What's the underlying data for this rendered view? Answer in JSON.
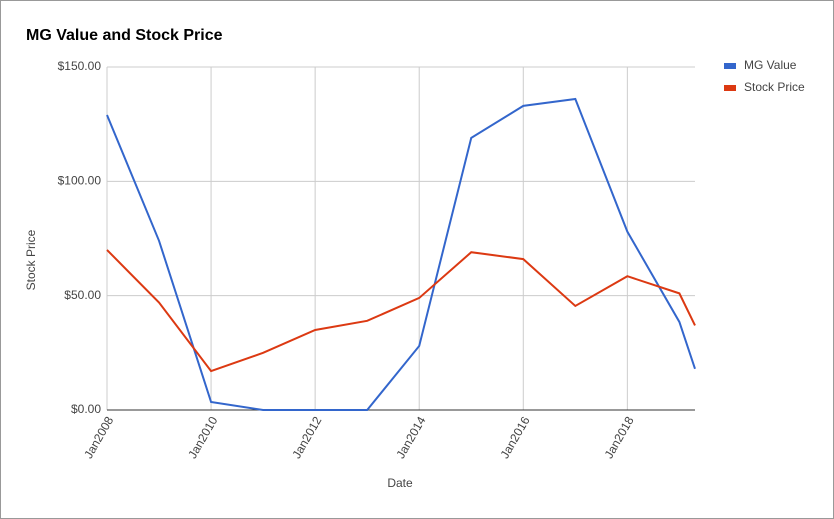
{
  "chart_data": {
    "type": "line",
    "title": "MG Value and Stock Price",
    "x_label": "Date",
    "y_label": "Stock Price",
    "x": [
      2008,
      2009,
      2010,
      2011,
      2012,
      2013,
      2014,
      2015,
      2016,
      2017,
      2018,
      2019,
      2019.3
    ],
    "series": [
      {
        "name": "MG Value",
        "color": "#3366cc",
        "values": [
          129,
          74,
          3.5,
          0,
          0,
          0,
          28,
          119,
          133,
          136,
          78,
          38.5,
          18
        ]
      },
      {
        "name": "Stock Price",
        "color": "#dc3912",
        "values": [
          70,
          47,
          17,
          25,
          35,
          39,
          49,
          69,
          66,
          45.5,
          58.5,
          51,
          37
        ]
      }
    ],
    "xlim": [
      2008,
      2019.3
    ],
    "xticks": [
      {
        "value": 2008,
        "label": "Jan2008"
      },
      {
        "value": 2010,
        "label": "Jan2010"
      },
      {
        "value": 2012,
        "label": "Jan2012"
      },
      {
        "value": 2014,
        "label": "Jan2014"
      },
      {
        "value": 2016,
        "label": "Jan2016"
      },
      {
        "value": 2018,
        "label": "Jan2018"
      }
    ],
    "ylim": [
      0,
      150
    ],
    "yticks": [
      {
        "value": 0,
        "label": "$0.00"
      },
      {
        "value": 50,
        "label": "$50.00"
      },
      {
        "value": 100,
        "label": "$100.00"
      },
      {
        "value": 150,
        "label": "$150.00"
      }
    ],
    "grid": true,
    "legend": "right"
  }
}
